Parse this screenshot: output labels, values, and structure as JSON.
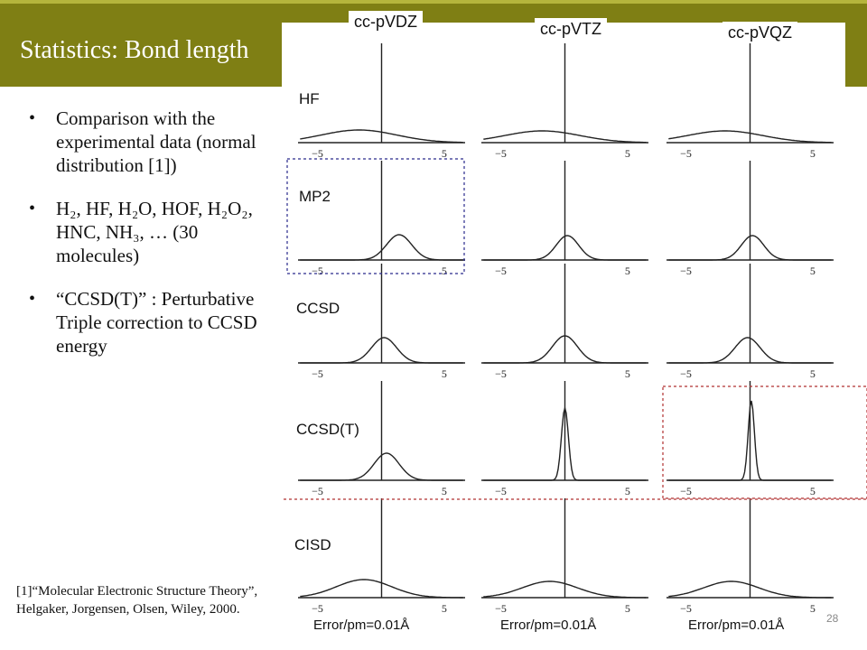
{
  "slide": {
    "title": "Statistics: Bond length",
    "page_number": "28"
  },
  "columns": [
    "cc-pVDZ",
    "cc-pVTZ",
    "cc-pVQZ"
  ],
  "rows": [
    "HF",
    "MP2",
    "CCSD",
    "CCSD(T)",
    "CISD"
  ],
  "bullets": [
    "Comparison with the experimental data (normal distribution [1])",
    "H₂, HF, H₂O, HOF, H₂O₂, HNC, NH₃, … (30 molecules)",
    "“CCSD(T)” : Perturbative Triple correction to CCSD energy"
  ],
  "reference": "[1]“Molecular Electronic Structure Theory”, Helgaker, Jorgensen, Olsen, Wiley, 2000.",
  "error_labels": [
    "Error/pm=0.01Å",
    "Error/pm=0.01Å",
    "Error/pm=0.01Å"
  ],
  "axis_ticks": [
    "−5",
    "5"
  ],
  "colors": {
    "title_band": "#7f7f14",
    "highlight_box_mp2": "#2a2a8c",
    "highlight_box_ccsdt": "#b03030"
  }
}
